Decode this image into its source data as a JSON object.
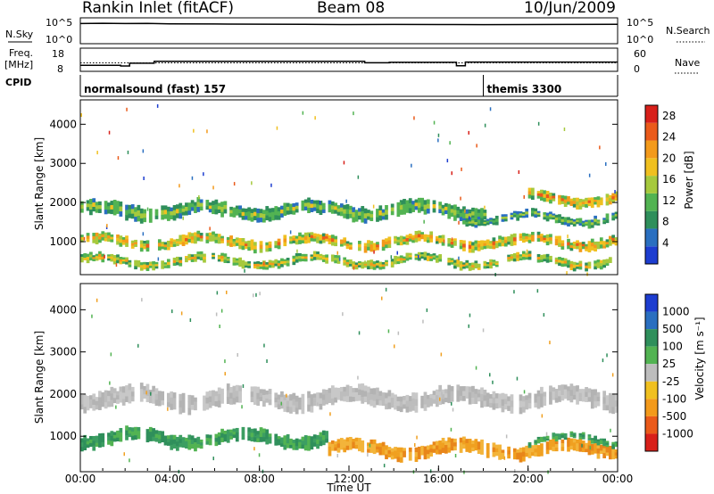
{
  "header": {
    "station": "Rankin Inlet (fitACF)",
    "beam": "Beam 08",
    "date": "10/Jun/2009"
  },
  "strip_labels": {
    "nsky": "N.Sky",
    "nsearch": "N.Search",
    "freq": "Freq.",
    "freq_unit": "[MHz]",
    "nave": "Nave",
    "cpid": "CPID",
    "log_hi_left": "10^5",
    "log_lo_left": "10^0",
    "log_hi_right": "10^5",
    "log_lo_right": "10^0",
    "freq_hi": "18",
    "freq_lo": "8",
    "nave_hi": "60",
    "nave_lo": "0"
  },
  "cpid_modes": [
    {
      "label": "normalsound (fast) 157",
      "start_hour": 0
    },
    {
      "label": "themis 3300",
      "start_hour": 18
    }
  ],
  "chart_data": [
    {
      "type": "line",
      "title": "N.Sky / N.Search",
      "ylim": [
        1,
        100000
      ],
      "yscale": "log",
      "x_hours": [
        0,
        1,
        2,
        3,
        4,
        6,
        8,
        10,
        12,
        14,
        16,
        18,
        20,
        22,
        24
      ],
      "values": [
        8000,
        9000,
        8000,
        8500,
        7000,
        6500,
        6000,
        5500,
        5000,
        5200,
        5000,
        4800,
        5000,
        5200,
        5500
      ]
    },
    {
      "type": "line",
      "title": "Frequency / Nave",
      "ylim_left": [
        8,
        18
      ],
      "ylim_right": [
        0,
        60
      ],
      "frequency_steps": [
        {
          "start": 0,
          "end": 1.8,
          "value": 10.6
        },
        {
          "start": 1.8,
          "end": 2.2,
          "value": 10.3
        },
        {
          "start": 2.2,
          "end": 3.3,
          "value": 11.5
        },
        {
          "start": 3.3,
          "end": 12.7,
          "value": 12.3
        },
        {
          "start": 12.7,
          "end": 13.8,
          "value": 11.7
        },
        {
          "start": 13.8,
          "end": 16.8,
          "value": 11.9
        },
        {
          "start": 16.8,
          "end": 17.2,
          "value": 10.4
        },
        {
          "start": 17.2,
          "end": 24,
          "value": 12.0
        }
      ],
      "nave_value": 22
    },
    {
      "type": "heatmap",
      "title": "Power",
      "xlabel": "",
      "ylabel": "Slant Range [km]",
      "xlim": [
        0,
        24
      ],
      "ylim": [
        180,
        4600
      ],
      "yticks": [
        1000,
        2000,
        3000,
        4000
      ],
      "colorbar": {
        "label": "Power [dB]",
        "ticks": [
          "4",
          "8",
          "12",
          "16",
          "20",
          "24",
          "28"
        ],
        "range": [
          0,
          30
        ]
      },
      "bands": [
        {
          "start": 0,
          "end": 24,
          "center": 1000,
          "width": 250,
          "level": 0.7
        },
        {
          "start": 0,
          "end": 18,
          "center": 1800,
          "width": 350,
          "level": 0.45
        },
        {
          "start": 17,
          "end": 24,
          "center": 1600,
          "width": 200,
          "level": 0.4
        },
        {
          "start": 20,
          "end": 24,
          "center": 2100,
          "width": 250,
          "level": 0.7
        },
        {
          "start": 0,
          "end": 24,
          "center": 500,
          "width": 200,
          "level": 0.6
        }
      ]
    },
    {
      "type": "heatmap",
      "title": "Velocity",
      "xlabel": "Time UT",
      "ylabel": "Slant Range [km]",
      "xlim": [
        0,
        24
      ],
      "ylim": [
        180,
        4600
      ],
      "yticks": [
        1000,
        2000,
        3000,
        4000
      ],
      "xticks": [
        "00:00",
        "04:00",
        "08:00",
        "12:00",
        "16:00",
        "20:00",
        "00:00"
      ],
      "colorbar": {
        "label": "Velocity [m s⁻¹]",
        "ticks": [
          "1000",
          "500",
          "100",
          "25",
          "-25",
          "-100",
          "-500",
          "-1000"
        ]
      },
      "bands": [
        {
          "start": 0,
          "end": 24,
          "center": 1900,
          "width": 400,
          "level": "ground"
        },
        {
          "start": 0,
          "end": 11,
          "center": 950,
          "width": 300,
          "level": "towards"
        },
        {
          "start": 11,
          "end": 24,
          "center": 700,
          "width": 300,
          "level": "away"
        },
        {
          "start": 20,
          "end": 24,
          "center": 900,
          "width": 150,
          "level": "towards"
        }
      ]
    }
  ]
}
